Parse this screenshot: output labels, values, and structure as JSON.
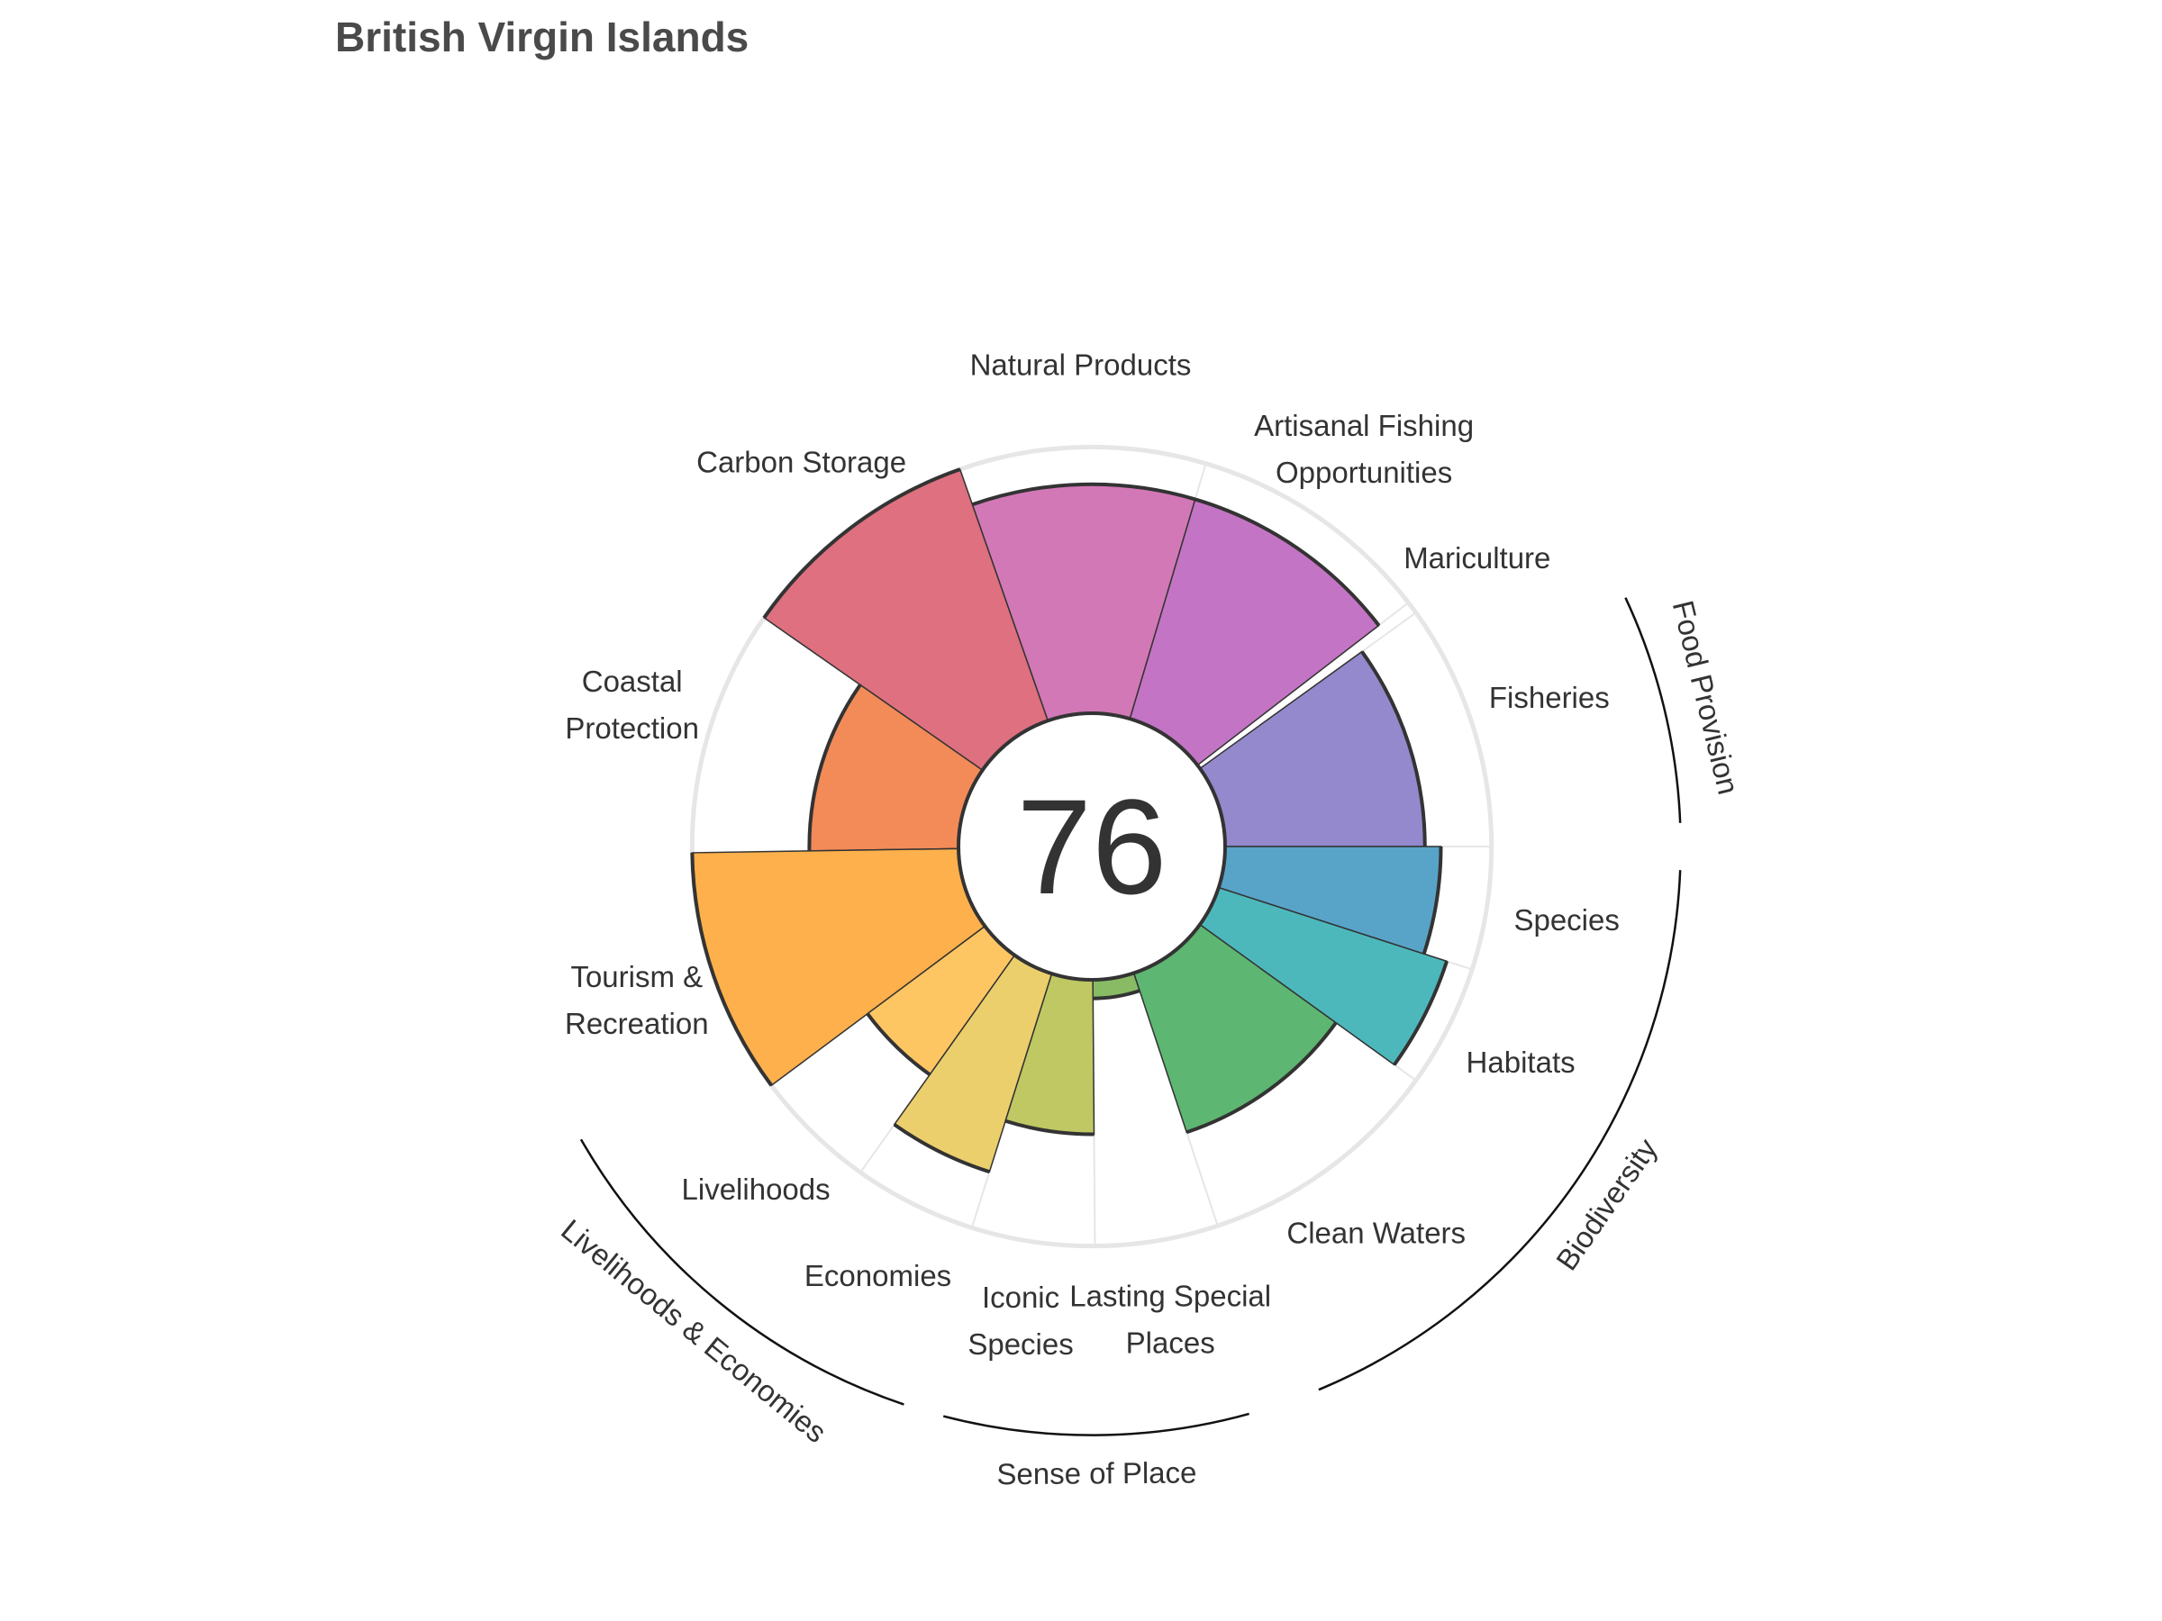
{
  "title": "British Virgin Islands",
  "chart_data": {
    "type": "polar-bar",
    "title": "British Virgin Islands",
    "center_score": "76",
    "rlim": [
      0,
      100
    ],
    "categories": [
      {
        "label": [
          "Fisheries"
        ],
        "value": 75,
        "weight": 1,
        "color": "#9389cc"
      },
      {
        "label": [
          "Mariculture"
        ],
        "value": 0,
        "weight": 0.05,
        "color": "#9389cc"
      },
      {
        "label": [
          "Artisanal Fishing",
          "Opportunities"
        ],
        "value": 86,
        "weight": 1,
        "color": "#c474c4"
      },
      {
        "label": [
          "Natural Products"
        ],
        "value": 86,
        "weight": 1,
        "color": "#d378b6"
      },
      {
        "label": [
          "Carbon Storage"
        ],
        "value": 100,
        "weight": 1,
        "color": "#de707f"
      },
      {
        "label": [
          "Coastal",
          "Protection"
        ],
        "value": 56,
        "weight": 1,
        "color": "#f28b58"
      },
      {
        "label": [
          "Tourism &",
          "Recreation"
        ],
        "value": 100,
        "weight": 1,
        "color": "#fdb04b"
      },
      {
        "label": [
          "Livelihoods"
        ],
        "value": 55,
        "weight": 0.5,
        "color": "#fdc663"
      },
      {
        "label": [
          "Economies"
        ],
        "value": 78,
        "weight": 0.5,
        "color": "#eccf6d"
      },
      {
        "label": [
          "Iconic",
          "Species"
        ],
        "value": 58,
        "weight": 0.5,
        "color": "#bfc862"
      },
      {
        "label": [
          "Lasting Special",
          "Places"
        ],
        "value": 7,
        "weight": 0.5,
        "color": "#88bb64"
      },
      {
        "label": [
          "Clean Waters"
        ],
        "value": 63,
        "weight": 1,
        "color": "#5db671"
      },
      {
        "label": [
          "Habitats"
        ],
        "value": 90,
        "weight": 0.5,
        "color": "#4db8bc"
      },
      {
        "label": [
          "Species"
        ],
        "value": 81,
        "weight": 0.5,
        "color": "#58a4c9"
      }
    ],
    "groups": [
      {
        "label": "Food Provision"
      },
      {
        "label": "Biodiversity"
      },
      {
        "label": "Sense of Place"
      },
      {
        "label": "Livelihoods & Economies"
      }
    ]
  }
}
